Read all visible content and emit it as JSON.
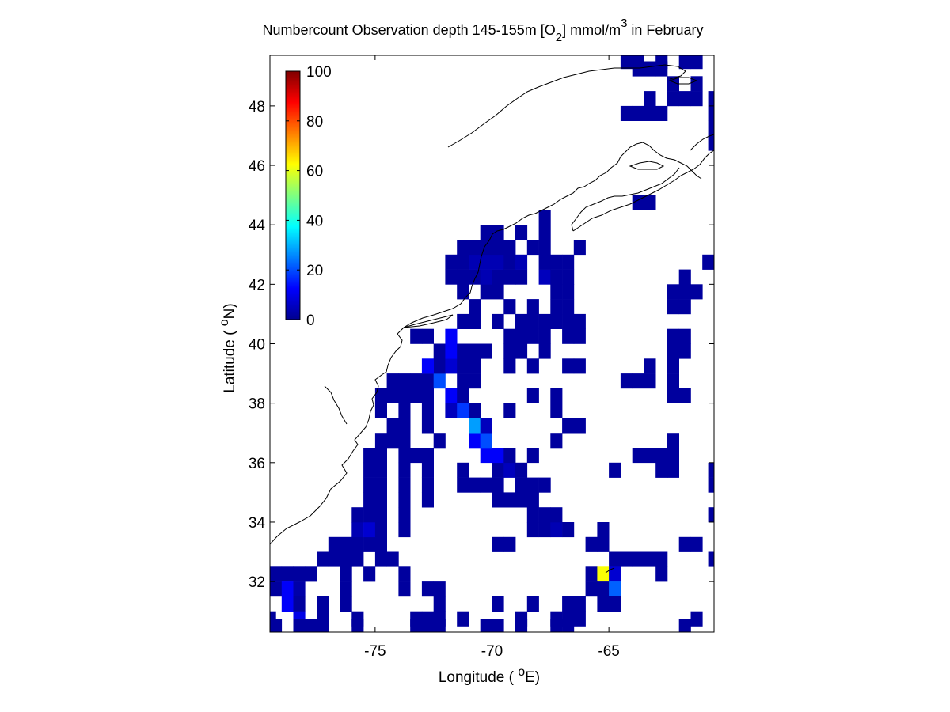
{
  "title": {
    "main": "Numbercount Observation depth 145-155m [O",
    "sub": "2",
    "mid": "] mmol/m",
    "sup": "3",
    "tail": " in February"
  },
  "axes": {
    "xlabel": {
      "pre": "Longitude ( ",
      "deg": "o",
      "post": "E)"
    },
    "ylabel": {
      "pre": "Latitude ( ",
      "deg": "o",
      "post": "N)"
    },
    "xlim": [
      -79.5,
      -60.5
    ],
    "ylim": [
      30.3,
      49.7
    ],
    "xticks": [
      -75,
      -70,
      -65
    ],
    "yticks": [
      32,
      34,
      36,
      38,
      40,
      42,
      44,
      46,
      48
    ]
  },
  "colorbar": {
    "ticks": [
      0,
      20,
      40,
      60,
      80,
      100
    ],
    "range": [
      0,
      100
    ],
    "colormap": "jet"
  },
  "chart_data": {
    "type": "heatmap",
    "xlabel": "Longitude ( oE)",
    "ylabel": "Latitude ( oN)",
    "xlim": [
      -79.5,
      -60.5
    ],
    "ylim": [
      30.3,
      49.7
    ],
    "clim": [
      0,
      100
    ],
    "cell_size_deg": 0.5,
    "cells": [
      [
        -79.25,
        32.25,
        3
      ],
      [
        -78.75,
        32.25,
        3
      ],
      [
        -78.25,
        32.25,
        3
      ],
      [
        -77.75,
        32.25,
        3
      ],
      [
        -79.25,
        31.75,
        3
      ],
      [
        -78.75,
        31.75,
        12
      ],
      [
        -78.25,
        31.75,
        4
      ],
      [
        -78.75,
        31.25,
        12
      ],
      [
        -78.25,
        31.25,
        3
      ],
      [
        -77.25,
        31.25,
        3
      ],
      [
        -79.5,
        30.75,
        3
      ],
      [
        -78.25,
        30.75,
        10
      ],
      [
        -77.25,
        30.75,
        3
      ],
      [
        -75.75,
        30.75,
        3
      ],
      [
        -79.25,
        30.5,
        3
      ],
      [
        -78.25,
        30.5,
        3
      ],
      [
        -77.75,
        30.5,
        3
      ],
      [
        -77.25,
        30.5,
        3
      ],
      [
        -75.75,
        30.5,
        3
      ],
      [
        -77.25,
        32.75,
        3
      ],
      [
        -76.75,
        32.75,
        3
      ],
      [
        -76.25,
        32.75,
        3
      ],
      [
        -76.75,
        33.25,
        3
      ],
      [
        -76.25,
        33.25,
        3
      ],
      [
        -75.75,
        33.25,
        3
      ],
      [
        -75.25,
        33.25,
        3
      ],
      [
        -74.75,
        33.25,
        3
      ],
      [
        -75.75,
        32.75,
        3
      ],
      [
        -74.75,
        32.75,
        3
      ],
      [
        -74.25,
        32.75,
        3
      ],
      [
        -76.25,
        32.25,
        3
      ],
      [
        -75.25,
        32.25,
        3
      ],
      [
        -73.75,
        32.25,
        3
      ],
      [
        -76.25,
        31.75,
        3
      ],
      [
        -73.75,
        31.75,
        3
      ],
      [
        -76.25,
        31.25,
        3
      ],
      [
        -72.75,
        31.75,
        3
      ],
      [
        -72.25,
        31.75,
        3
      ],
      [
        -72.25,
        31.25,
        3
      ],
      [
        -73.25,
        30.75,
        3
      ],
      [
        -72.75,
        30.75,
        3
      ],
      [
        -72.25,
        30.75,
        3
      ],
      [
        -71.25,
        30.75,
        3
      ],
      [
        -68.75,
        30.75,
        3
      ],
      [
        -67.25,
        30.75,
        3
      ],
      [
        -66.75,
        30.75,
        3
      ],
      [
        -66.25,
        30.75,
        3
      ],
      [
        -73.25,
        30.5,
        3
      ],
      [
        -72.75,
        30.5,
        3
      ],
      [
        -72.25,
        30.5,
        3
      ],
      [
        -70.25,
        30.5,
        3
      ],
      [
        -69.75,
        30.5,
        3
      ],
      [
        -68.75,
        30.5,
        3
      ],
      [
        -67.25,
        30.5,
        3
      ],
      [
        -66.75,
        30.5,
        3
      ],
      [
        -61.75,
        30.5,
        3
      ],
      [
        -61.25,
        30.75,
        3
      ],
      [
        -75.75,
        33.75,
        5
      ],
      [
        -75.25,
        33.75,
        8
      ],
      [
        -74.75,
        33.75,
        3
      ],
      [
        -73.75,
        33.75,
        3
      ],
      [
        -75.75,
        34.25,
        3
      ],
      [
        -75.25,
        34.25,
        3
      ],
      [
        -74.75,
        34.25,
        3
      ],
      [
        -73.75,
        34.25,
        3
      ],
      [
        -75.25,
        34.75,
        3
      ],
      [
        -74.75,
        34.75,
        3
      ],
      [
        -73.75,
        34.75,
        3
      ],
      [
        -72.75,
        34.75,
        3
      ],
      [
        -75.25,
        35.25,
        3
      ],
      [
        -74.75,
        35.25,
        3
      ],
      [
        -73.75,
        35.25,
        3
      ],
      [
        -72.75,
        35.25,
        3
      ],
      [
        -71.25,
        35.25,
        3
      ],
      [
        -70.25,
        35.25,
        3
      ],
      [
        -69.75,
        35.25,
        3
      ],
      [
        -75.25,
        35.75,
        3
      ],
      [
        -74.75,
        35.75,
        3
      ],
      [
        -73.75,
        35.75,
        3
      ],
      [
        -72.75,
        35.75,
        3
      ],
      [
        -71.25,
        35.75,
        3
      ],
      [
        -69.75,
        35.75,
        3
      ],
      [
        -69.25,
        35.75,
        6
      ],
      [
        -68.75,
        35.75,
        3
      ],
      [
        -75.25,
        36.25,
        3
      ],
      [
        -74.75,
        36.25,
        3
      ],
      [
        -73.75,
        36.25,
        3
      ],
      [
        -73.25,
        36.25,
        3
      ],
      [
        -72.75,
        36.25,
        3
      ],
      [
        -70.25,
        36.25,
        12
      ],
      [
        -69.75,
        36.25,
        12
      ],
      [
        -69.25,
        36.25,
        3
      ],
      [
        -68.25,
        36.25,
        3
      ],
      [
        -74.75,
        36.75,
        3
      ],
      [
        -74.25,
        36.75,
        3
      ],
      [
        -73.75,
        36.75,
        3
      ],
      [
        -72.25,
        36.75,
        3
      ],
      [
        -70.75,
        36.75,
        12
      ],
      [
        -70.25,
        36.75,
        20
      ],
      [
        -74.25,
        37.25,
        3
      ],
      [
        -73.75,
        37.25,
        3
      ],
      [
        -72.75,
        37.25,
        3
      ],
      [
        -70.75,
        37.25,
        28
      ],
      [
        -70.25,
        37.25,
        6
      ],
      [
        -66.75,
        37.25,
        3
      ],
      [
        -66.25,
        37.25,
        3
      ],
      [
        -74.75,
        37.75,
        3
      ],
      [
        -73.75,
        37.75,
        3
      ],
      [
        -72.75,
        37.75,
        3
      ],
      [
        -71.75,
        37.75,
        6
      ],
      [
        -71.25,
        37.75,
        18
      ],
      [
        -70.75,
        37.75,
        3
      ],
      [
        -67.25,
        37.75,
        3
      ],
      [
        -74.75,
        38.25,
        3
      ],
      [
        -74.25,
        38.25,
        3
      ],
      [
        -73.75,
        38.25,
        3
      ],
      [
        -73.25,
        38.25,
        3
      ],
      [
        -72.75,
        38.25,
        3
      ],
      [
        -71.75,
        38.25,
        12
      ],
      [
        -71.25,
        38.25,
        3
      ],
      [
        -68.25,
        38.25,
        3
      ],
      [
        -67.25,
        38.25,
        3
      ],
      [
        -74.25,
        38.75,
        3
      ],
      [
        -73.75,
        38.75,
        3
      ],
      [
        -73.25,
        38.75,
        3
      ],
      [
        -72.75,
        38.75,
        3
      ],
      [
        -72.25,
        38.75,
        20
      ],
      [
        -71.25,
        38.75,
        3
      ],
      [
        -70.75,
        38.75,
        3
      ],
      [
        -72.25,
        39.25,
        3
      ],
      [
        -71.75,
        39.25,
        8
      ],
      [
        -71.25,
        39.25,
        3
      ],
      [
        -70.75,
        39.25,
        3
      ],
      [
        -69.25,
        39.25,
        3
      ],
      [
        -68.25,
        39.25,
        3
      ],
      [
        -66.75,
        39.25,
        3
      ],
      [
        -66.25,
        39.25,
        3
      ],
      [
        -72.75,
        39.25,
        12
      ],
      [
        -72.25,
        39.75,
        3
      ],
      [
        -71.75,
        39.75,
        12
      ],
      [
        -71.25,
        39.75,
        3
      ],
      [
        -70.75,
        39.75,
        3
      ],
      [
        -70.25,
        39.75,
        3
      ],
      [
        -69.25,
        39.75,
        3
      ],
      [
        -68.75,
        39.75,
        3
      ],
      [
        -67.75,
        39.75,
        3
      ],
      [
        -73.25,
        40.25,
        3
      ],
      [
        -72.75,
        40.25,
        3
      ],
      [
        -71.75,
        40.25,
        12
      ],
      [
        -69.25,
        40.25,
        3
      ],
      [
        -68.75,
        40.25,
        3
      ],
      [
        -68.25,
        40.25,
        3
      ],
      [
        -67.75,
        40.25,
        3
      ],
      [
        -66.75,
        40.25,
        3
      ],
      [
        -66.25,
        40.25,
        3
      ],
      [
        -71.25,
        40.75,
        3
      ],
      [
        -70.75,
        40.75,
        3
      ],
      [
        -69.75,
        40.75,
        3
      ],
      [
        -68.75,
        40.75,
        3
      ],
      [
        -68.25,
        40.75,
        3
      ],
      [
        -67.75,
        40.75,
        3
      ],
      [
        -67.25,
        40.75,
        3
      ],
      [
        -66.75,
        40.75,
        3
      ],
      [
        -66.25,
        40.75,
        3
      ],
      [
        -70.75,
        41.25,
        3
      ],
      [
        -69.25,
        41.25,
        3
      ],
      [
        -68.25,
        41.25,
        3
      ],
      [
        -67.25,
        41.25,
        3
      ],
      [
        -66.75,
        41.25,
        3
      ],
      [
        -71.25,
        41.75,
        3
      ],
      [
        -70.25,
        41.75,
        3
      ],
      [
        -69.75,
        41.75,
        3
      ],
      [
        -67.25,
        41.75,
        3
      ],
      [
        -66.75,
        41.75,
        3
      ],
      [
        -71.75,
        42.25,
        3
      ],
      [
        -71.25,
        42.25,
        3
      ],
      [
        -70.75,
        42.25,
        3
      ],
      [
        -70.25,
        42.25,
        5
      ],
      [
        -69.75,
        42.25,
        3
      ],
      [
        -69.25,
        42.25,
        3
      ],
      [
        -68.75,
        42.25,
        3
      ],
      [
        -67.75,
        42.25,
        6
      ],
      [
        -67.25,
        42.25,
        3
      ],
      [
        -66.75,
        42.25,
        3
      ],
      [
        -71.75,
        42.75,
        3
      ],
      [
        -71.25,
        42.75,
        3
      ],
      [
        -70.75,
        42.75,
        5
      ],
      [
        -70.25,
        42.75,
        5
      ],
      [
        -69.75,
        42.75,
        5
      ],
      [
        -69.25,
        42.75,
        3
      ],
      [
        -68.75,
        42.75,
        5
      ],
      [
        -67.75,
        42.75,
        3
      ],
      [
        -67.25,
        42.75,
        3
      ],
      [
        -66.75,
        42.75,
        3
      ],
      [
        -71.25,
        43.25,
        3
      ],
      [
        -70.75,
        43.25,
        3
      ],
      [
        -70.25,
        43.25,
        3
      ],
      [
        -69.75,
        43.25,
        3
      ],
      [
        -69.25,
        43.25,
        3
      ],
      [
        -68.25,
        43.25,
        3
      ],
      [
        -67.75,
        43.25,
        3
      ],
      [
        -66.25,
        43.25,
        3
      ],
      [
        -70.25,
        43.75,
        3
      ],
      [
        -69.75,
        43.75,
        3
      ],
      [
        -68.75,
        43.75,
        3
      ],
      [
        -67.75,
        43.75,
        3
      ],
      [
        -67.75,
        44.25,
        3
      ],
      [
        -63.75,
        44.75,
        3
      ],
      [
        -63.25,
        44.75,
        3
      ],
      [
        -61.75,
        42.25,
        3
      ],
      [
        -61.75,
        41.75,
        3
      ],
      [
        -61.25,
        41.75,
        3
      ],
      [
        -61.75,
        41.25,
        3
      ],
      [
        -62.25,
        41.75,
        3
      ],
      [
        -62.25,
        41.25,
        3
      ],
      [
        -60.75,
        42.75,
        3
      ],
      [
        -60.25,
        41.75,
        3
      ],
      [
        -62.25,
        40.25,
        3
      ],
      [
        -62.25,
        39.75,
        3
      ],
      [
        -61.75,
        40.25,
        3
      ],
      [
        -61.75,
        39.75,
        3
      ],
      [
        -62.25,
        39.25,
        3
      ],
      [
        -62.25,
        38.25,
        3
      ],
      [
        -61.75,
        38.25,
        3
      ],
      [
        -62.25,
        38.75,
        3
      ],
      [
        -63.25,
        39.25,
        3
      ],
      [
        -63.75,
        38.75,
        3
      ],
      [
        -63.25,
        38.75,
        3
      ],
      [
        -64.25,
        38.75,
        3
      ],
      [
        -62.25,
        36.75,
        3
      ],
      [
        -62.25,
        36.25,
        3
      ],
      [
        -62.75,
        36.25,
        3
      ],
      [
        -63.25,
        36.25,
        3
      ],
      [
        -63.75,
        36.25,
        3
      ],
      [
        -62.25,
        35.75,
        3
      ],
      [
        -62.75,
        35.75,
        3
      ],
      [
        -60.5,
        35.75,
        3
      ],
      [
        -60.5,
        35.25,
        3
      ],
      [
        -60.5,
        34.25,
        3
      ],
      [
        -64.75,
        35.75,
        3
      ],
      [
        -65.25,
        33.75,
        3
      ],
      [
        -65.75,
        33.25,
        3
      ],
      [
        -65.25,
        33.25,
        3
      ],
      [
        -64.75,
        32.75,
        3
      ],
      [
        -64.25,
        32.75,
        3
      ],
      [
        -63.75,
        32.75,
        3
      ],
      [
        -63.25,
        32.75,
        3
      ],
      [
        -62.75,
        32.75,
        3
      ],
      [
        -65.75,
        32.25,
        3
      ],
      [
        -65.25,
        32.25,
        62
      ],
      [
        -64.75,
        32.25,
        8
      ],
      [
        -62.75,
        32.25,
        3
      ],
      [
        -65.75,
        31.75,
        3
      ],
      [
        -65.25,
        31.75,
        3
      ],
      [
        -64.75,
        31.75,
        22
      ],
      [
        -65.25,
        31.25,
        3
      ],
      [
        -64.75,
        31.25,
        3
      ],
      [
        -66.25,
        31.25,
        3
      ],
      [
        -66.75,
        31.25,
        3
      ],
      [
        -61.75,
        33.25,
        3
      ],
      [
        -61.25,
        33.25,
        3
      ],
      [
        -60.5,
        32.75,
        3
      ],
      [
        -69.75,
        33.25,
        3
      ],
      [
        -69.25,
        33.25,
        3
      ],
      [
        -68.25,
        33.75,
        3
      ],
      [
        -67.75,
        33.75,
        3
      ],
      [
        -67.25,
        33.75,
        5
      ],
      [
        -66.75,
        33.75,
        3
      ],
      [
        -68.25,
        34.25,
        3
      ],
      [
        -67.75,
        34.25,
        3
      ],
      [
        -67.25,
        34.25,
        3
      ],
      [
        -68.75,
        34.75,
        3
      ],
      [
        -68.25,
        34.75,
        3
      ],
      [
        -69.75,
        34.75,
        3
      ],
      [
        -69.25,
        34.75,
        3
      ],
      [
        -68.25,
        35.25,
        3
      ],
      [
        -67.75,
        35.25,
        3
      ],
      [
        -70.75,
        35.25,
        3
      ],
      [
        -68.75,
        35.25,
        3
      ],
      [
        -67.25,
        36.75,
        3
      ],
      [
        -69.25,
        37.75,
        3
      ],
      [
        -69.75,
        31.25,
        3
      ],
      [
        -68.25,
        31.25,
        3
      ],
      [
        -64.25,
        47.75,
        3
      ],
      [
        -63.75,
        47.75,
        3
      ],
      [
        -63.25,
        47.75,
        3
      ],
      [
        -62.75,
        47.75,
        3
      ],
      [
        -63.25,
        48.25,
        3
      ],
      [
        -62.25,
        48.25,
        3
      ],
      [
        -61.75,
        48.25,
        3
      ],
      [
        -61.25,
        48.25,
        3
      ],
      [
        -62.25,
        48.75,
        3
      ],
      [
        -61.25,
        48.75,
        3
      ],
      [
        -60.5,
        48.25,
        3
      ],
      [
        -60.5,
        47.75,
        3
      ],
      [
        -60.5,
        47.25,
        3
      ],
      [
        -60.5,
        46.75,
        3
      ],
      [
        -63.75,
        49.25,
        3
      ],
      [
        -63.25,
        49.25,
        3
      ],
      [
        -62.75,
        49.25,
        3
      ],
      [
        -64.25,
        49.5,
        3
      ],
      [
        -63.75,
        49.5,
        3
      ],
      [
        -62.75,
        49.5,
        3
      ],
      [
        -61.75,
        49.5,
        3
      ],
      [
        -61.25,
        49.5,
        3
      ]
    ]
  }
}
